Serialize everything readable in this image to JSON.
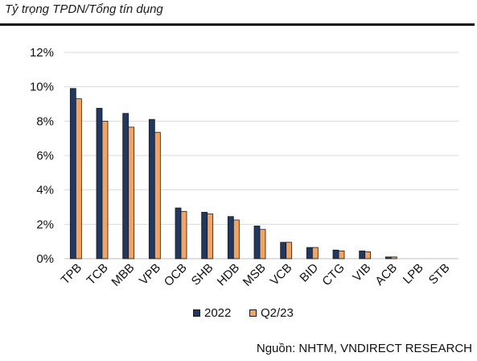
{
  "header": {
    "title": "Tỷ trọng TPDN/Tổng tín dụng"
  },
  "footer": {
    "source": "Nguồn: NHTM, VNDIRECT RESEARCH"
  },
  "chart_data": {
    "type": "bar",
    "title": "Tỷ trọng TPDN/Tổng tín dụng",
    "xlabel": "",
    "ylabel": "",
    "categories": [
      "TPB",
      "TCB",
      "MBB",
      "VPB",
      "OCB",
      "SHB",
      "HDB",
      "MSB",
      "VCB",
      "BID",
      "CTG",
      "VIB",
      "ACB",
      "LPB",
      "STB"
    ],
    "series": [
      {
        "name": "2022",
        "color": "#1f3864",
        "values": [
          9.9,
          8.75,
          8.45,
          8.1,
          2.95,
          2.7,
          2.45,
          1.9,
          0.95,
          0.65,
          0.5,
          0.45,
          0.1,
          0.0,
          0.0
        ]
      },
      {
        "name": "Q2/23",
        "color": "#f4a460",
        "values": [
          9.3,
          8.0,
          7.65,
          7.35,
          2.75,
          2.6,
          2.25,
          1.7,
          0.95,
          0.65,
          0.45,
          0.4,
          0.1,
          0.0,
          0.0
        ]
      }
    ],
    "ylim": [
      0,
      12
    ],
    "yticks": [
      0,
      2,
      4,
      6,
      8,
      10,
      12
    ],
    "ytick_format": "percent",
    "grid": true,
    "legend": "bottom"
  }
}
